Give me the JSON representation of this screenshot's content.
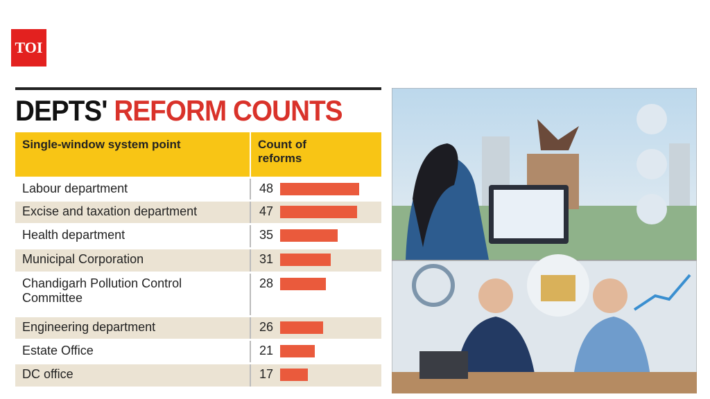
{
  "logo": "TOI",
  "title": {
    "part1": "DEPTS'",
    "part2": "REFORM COUNTS"
  },
  "table": {
    "header": [
      "Single-window system point",
      "Count of reforms"
    ],
    "rows": [
      {
        "label": "Labour department",
        "count": 48
      },
      {
        "label": "Excise and taxation department",
        "count": 47
      },
      {
        "label": "Health department",
        "count": 35
      },
      {
        "label": "Municipal Corporation",
        "count": 31
      },
      {
        "label": "Chandigarh Pollution Control Committee",
        "count": 28
      },
      {
        "label": "Engineering department",
        "count": 26
      },
      {
        "label": "Estate Office",
        "count": 21
      },
      {
        "label": "DC office",
        "count": 17
      }
    ]
  }
}
